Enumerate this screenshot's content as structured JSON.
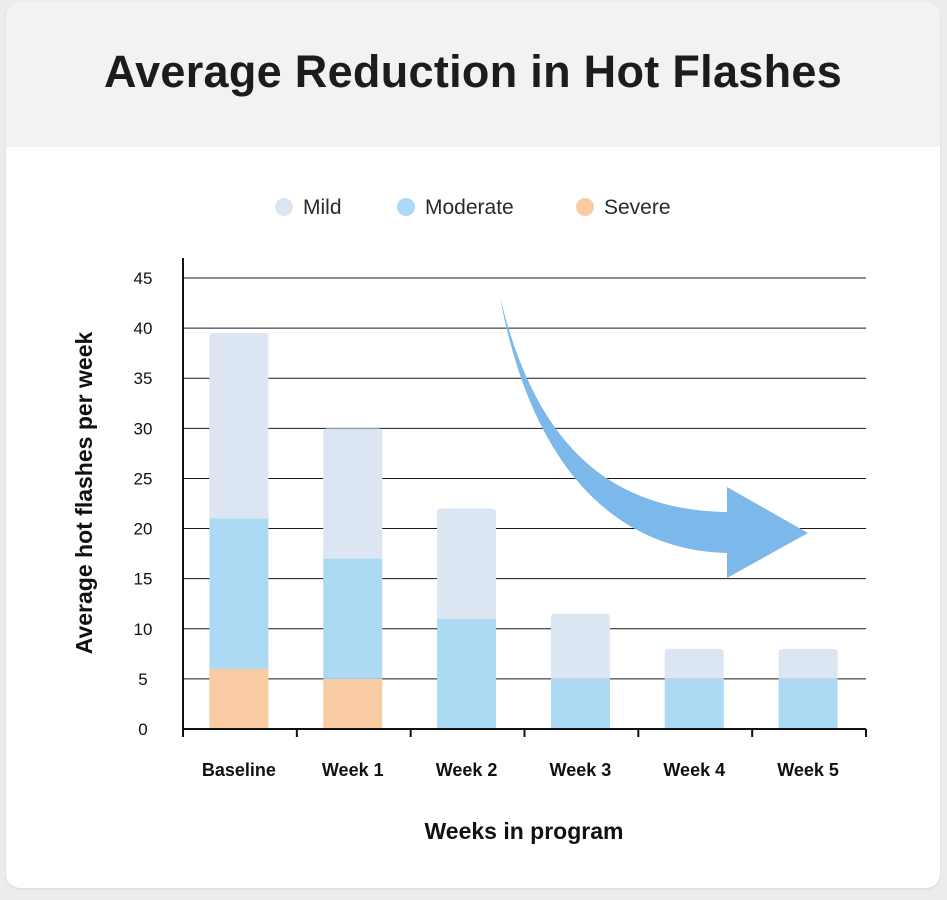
{
  "chart_data": {
    "type": "bar",
    "stacked": true,
    "title": "Average Reduction in Hot Flashes",
    "xlabel": "Weeks in program",
    "ylabel": "Average hot flashes per week",
    "categories": [
      "Baseline",
      "Week 1",
      "Week 2",
      "Week 3",
      "Week 4",
      "Week 5"
    ],
    "series": [
      {
        "name": "Severe",
        "color": "#f9cba3",
        "values": [
          6,
          5,
          0,
          0,
          0,
          0
        ]
      },
      {
        "name": "Moderate",
        "color": "#acd9f3",
        "values": [
          15,
          12,
          11,
          5,
          5,
          5
        ]
      },
      {
        "name": "Mild",
        "color": "#dce6f2",
        "values": [
          18.5,
          13,
          11,
          6.5,
          3,
          3
        ]
      }
    ],
    "legend_order": [
      "Mild",
      "Moderate",
      "Severe"
    ],
    "yticks": [
      0,
      5,
      10,
      15,
      20,
      25,
      30,
      35,
      40,
      45
    ],
    "ylim": [
      0,
      45
    ],
    "grid": true,
    "legend_position": "top",
    "annotation": "downward-trend-arrow",
    "annotation_color": "#7db8ea"
  }
}
